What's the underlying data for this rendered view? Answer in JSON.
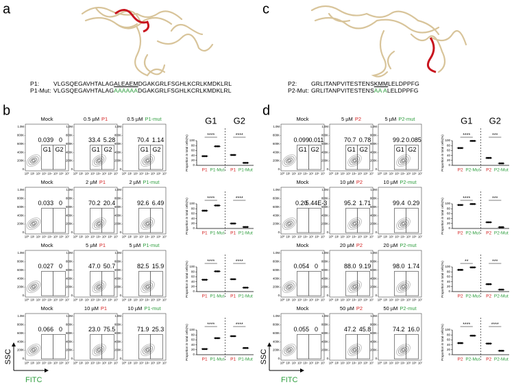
{
  "panel_letters": [
    "a",
    "b",
    "c",
    "d"
  ],
  "sequences": [
    {
      "label": "P1:",
      "parts": [
        {
          "text": "VLGSQEGAVHTALAG"
        },
        {
          "text": "ALEAEM",
          "style": "underline"
        },
        {
          "text": "DGAKGRLFSGHLKCRLKMDKLRL"
        }
      ]
    },
    {
      "label": "P1-Mut:",
      "parts": [
        {
          "text": "VLGSQEGAVHTALAG"
        },
        {
          "text": "AAAAAA",
          "style": "green"
        },
        {
          "text": "DGAKGRLFSGHLKCRLKMDKLRL"
        }
      ]
    },
    {
      "label": "P2:",
      "parts": [
        {
          "text": "GRLITANPVITESTENS"
        },
        {
          "text": "KMM",
          "style": "underline"
        },
        {
          "text": "LELDPPFG"
        }
      ]
    },
    {
      "label": "P2-Mut:",
      "parts": [
        {
          "text": "GRLITANPVITESTENS"
        },
        {
          "text": "AA A",
          "style": "green"
        },
        {
          "text": "LELDPPFG"
        }
      ]
    }
  ],
  "flow": {
    "y_axis_label": "SSC",
    "x_axis_label": "FITC",
    "yticks": [
      "0",
      "200K",
      "400K",
      "600K",
      "800K",
      "1.0M"
    ],
    "xticks": [
      "10⁰",
      "10¹",
      "10²",
      "10³",
      "10⁴",
      "10⁵",
      "10⁶",
      "10⁷"
    ],
    "gate_labels": [
      "G1",
      "G2"
    ],
    "panels": [
      {
        "rows": [
          {
            "plots": [
              {
                "title": [
                  {
                    "text": "Mock"
                  }
                ],
                "g1": "0.039",
                "g2": "0"
              },
              {
                "title": [
                  {
                    "text": "0.5 µM"
                  },
                  {
                    "text": "P1",
                    "color": "#d42020"
                  }
                ],
                "g1": "33.4",
                "g2": "5.28"
              },
              {
                "title": [
                  {
                    "text": "0.5 µM"
                  },
                  {
                    "text": "P1-mut",
                    "color": "#2e9e3e"
                  }
                ],
                "g1": "70.4",
                "g2": "1.14"
              }
            ]
          },
          {
            "plots": [
              {
                "title": [
                  {
                    "text": "Mock"
                  }
                ],
                "g1": "0.033",
                "g2": "0"
              },
              {
                "title": [
                  {
                    "text": "2 µM"
                  },
                  {
                    "text": "P1",
                    "color": "#d42020"
                  }
                ],
                "g1": "70.2",
                "g2": "20.4"
              },
              {
                "title": [
                  {
                    "text": "2 µM"
                  },
                  {
                    "text": "P1-mut",
                    "color": "#2e9e3e"
                  }
                ],
                "g1": "92.6",
                "g2": "6.49"
              }
            ]
          },
          {
            "plots": [
              {
                "title": [
                  {
                    "text": "Mock"
                  }
                ],
                "g1": "0.027",
                "g2": "0"
              },
              {
                "title": [
                  {
                    "text": "5 µM"
                  },
                  {
                    "text": "P1",
                    "color": "#d42020"
                  }
                ],
                "g1": "47.0",
                "g2": "50.7"
              },
              {
                "title": [
                  {
                    "text": "5 µM"
                  },
                  {
                    "text": "P1-mut",
                    "color": "#2e9e3e"
                  }
                ],
                "g1": "82.5",
                "g2": "15.9"
              }
            ]
          },
          {
            "plots": [
              {
                "title": [
                  {
                    "text": "Mock"
                  }
                ],
                "g1": "0.066",
                "g2": "0"
              },
              {
                "title": [
                  {
                    "text": "10 µM"
                  },
                  {
                    "text": "P1",
                    "color": "#d42020"
                  }
                ],
                "g1": "23.0",
                "g2": "75.5"
              },
              {
                "title": [
                  {
                    "text": "10 µM"
                  },
                  {
                    "text": "P1-mut",
                    "color": "#2e9e3e"
                  }
                ],
                "g1": "71.9",
                "g2": "25.3"
              }
            ]
          }
        ],
        "dot": {
          "ylabel": "Proportion in total cells(%)",
          "headers": [
            "G1",
            "G2"
          ],
          "xlabels": [
            {
              "text": "P1",
              "color": "#d42020"
            },
            {
              "text": "P1-Mut",
              "color": "#2e9e3e"
            },
            {
              "text": "P1",
              "color": "#d42020"
            },
            {
              "text": "P1-Mut",
              "color": "#2e9e3e"
            }
          ],
          "ylim": [
            0,
            100
          ],
          "yticks": [
            0,
            20,
            40,
            60,
            80,
            100
          ],
          "rows": [
            {
              "values": [
                37,
                77,
                42,
                10
              ],
              "stars": [
                "****",
                "****"
              ]
            },
            {
              "values": [
                72,
                93,
                20,
                6
              ],
              "stars": [
                "****",
                "****"
              ]
            },
            {
              "values": [
                48,
                82,
                50,
                16
              ],
              "stars": [
                "****",
                "****"
              ]
            },
            {
              "values": [
                23,
                67,
                75,
                27
              ],
              "stars": [
                "****",
                "****"
              ]
            }
          ]
        }
      },
      {
        "rows": [
          {
            "plots": [
              {
                "title": [
                  {
                    "text": "Mock"
                  }
                ],
                "g1": "0.099",
                "g2": "0.011"
              },
              {
                "title": [
                  {
                    "text": "5 µM"
                  },
                  {
                    "text": "P2",
                    "color": "#d42020"
                  }
                ],
                "g1": "70.7",
                "g2": "0.78"
              },
              {
                "title": [
                  {
                    "text": "5 µM"
                  },
                  {
                    "text": "P2-mut",
                    "color": "#2e9e3e"
                  }
                ],
                "g1": "99.2",
                "g2": "0.085"
              }
            ]
          },
          {
            "plots": [
              {
                "title": [
                  {
                    "text": "Mock"
                  }
                ],
                "g1": "0.20",
                "g2": "5.44E-3"
              },
              {
                "title": [
                  {
                    "text": "10 µM"
                  },
                  {
                    "text": "P2",
                    "color": "#d42020"
                  }
                ],
                "g1": "95.2",
                "g2": "1.71"
              },
              {
                "title": [
                  {
                    "text": "10 µM"
                  },
                  {
                    "text": "P2-mut",
                    "color": "#2e9e3e"
                  }
                ],
                "g1": "99.4",
                "g2": "0.29"
              }
            ]
          },
          {
            "plots": [
              {
                "title": [
                  {
                    "text": "Mock"
                  }
                ],
                "g1": "0.054",
                "g2": "0"
              },
              {
                "title": [
                  {
                    "text": "20 µM"
                  },
                  {
                    "text": "P2",
                    "color": "#d42020"
                  }
                ],
                "g1": "88.0",
                "g2": "9.19"
              },
              {
                "title": [
                  {
                    "text": "20 µM"
                  },
                  {
                    "text": "P2-mut",
                    "color": "#2e9e3e"
                  }
                ],
                "g1": "98.0",
                "g2": "1.74"
              }
            ]
          },
          {
            "plots": [
              {
                "title": [
                  {
                    "text": "Mock"
                  }
                ],
                "g1": "0.055",
                "g2": "0"
              },
              {
                "title": [
                  {
                    "text": "50 µM"
                  },
                  {
                    "text": "P2",
                    "color": "#d42020"
                  }
                ],
                "g1": "47.2",
                "g2": "45.8"
              },
              {
                "title": [
                  {
                    "text": "50 µM"
                  },
                  {
                    "text": "P2-mut",
                    "color": "#2e9e3e"
                  }
                ],
                "g1": "74.2",
                "g2": "16.0"
              }
            ]
          }
        ],
        "dot": {
          "ylabel": "Proportion in total cells(%)",
          "headers": [
            "G1",
            "G2"
          ],
          "xlabels": [
            {
              "text": "P2",
              "color": "#d42020"
            },
            {
              "text": "P2-Mut",
              "color": "#2e9e3e"
            },
            {
              "text": "P2",
              "color": "#d42020"
            },
            {
              "text": "P2-Mut",
              "color": "#2e9e3e"
            }
          ],
          "ylim": [
            0,
            100
          ],
          "yticks": [
            0,
            20,
            40,
            60,
            80,
            100
          ],
          "rows": [
            {
              "values": [
                70,
                99,
                30,
                8
              ],
              "stars": [
                "****",
                "***"
              ]
            },
            {
              "values": [
                95,
                99,
                25,
                5
              ],
              "stars": [
                "****",
                "***"
              ]
            },
            {
              "values": [
                88,
                98,
                30,
                8
              ],
              "stars": [
                "**",
                "***"
              ]
            },
            {
              "values": [
                47,
                77,
                45,
                16
              ],
              "stars": [
                "****",
                "****"
              ]
            }
          ]
        }
      }
    ]
  }
}
